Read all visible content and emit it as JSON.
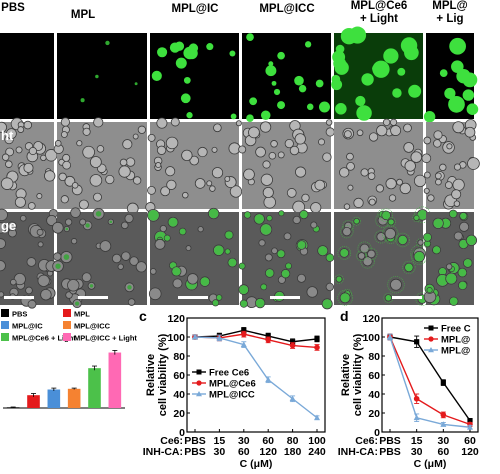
{
  "micrograph_grid": {
    "columns": [
      {
        "label": "PBS"
      },
      {
        "label": "MPL"
      },
      {
        "label": "MPL@IC"
      },
      {
        "label": "MPL@ICC"
      },
      {
        "label": "MPL@Ce6\n+ Light"
      },
      {
        "label": "MPL@\n+ Lig"
      }
    ],
    "rows": [
      {
        "label": ""
      },
      {
        "label": "ht"
      },
      {
        "label": "ge"
      }
    ]
  },
  "panel_labels": {
    "c": "c",
    "d": "d"
  },
  "chart_data": [
    {
      "type": "bar",
      "panel": "left-partial",
      "legend": [
        {
          "name": "PBS",
          "color": "#000000"
        },
        {
          "name": "MPL",
          "color": "#e41a1c"
        },
        {
          "name": "MPL@IC",
          "color": "#4a8fd8"
        },
        {
          "name": "MPL@ICC",
          "color": "#f58231"
        },
        {
          "name": "MPL@Ce6 + Light",
          "color": "#4cc14a"
        },
        {
          "name": "MPL@ICC + Light",
          "color": "#ff69b4"
        }
      ],
      "values": [
        0.05,
        0.9,
        1.3,
        1.35,
        2.8,
        3.9
      ],
      "errors": [
        0.02,
        0.12,
        0.1,
        0.05,
        0.15,
        0.15
      ],
      "ylim": [
        0,
        4.5
      ]
    },
    {
      "type": "line",
      "panel": "c",
      "ylabel": "Relative\ncell viability (%)",
      "xlabel": "C (μM)",
      "ylim": [
        0,
        120
      ],
      "yticks": [
        "0",
        "20",
        "40",
        "60",
        "80",
        "100",
        "120"
      ],
      "row_labels": [
        {
          "name": "Ce6:",
          "ticks": [
            "PBS",
            "15",
            "30",
            "60",
            "80",
            "100"
          ]
        },
        {
          "name": "INH-CA:",
          "ticks": [
            "PBS",
            "30",
            "60",
            "120",
            "180",
            "240"
          ]
        }
      ],
      "series": [
        {
          "name": "Free Ce6",
          "color": "#000000",
          "marker": "square",
          "values": [
            100,
            101,
            107,
            101,
            95,
            98
          ],
          "errors": [
            2,
            3,
            3,
            3,
            3,
            3
          ]
        },
        {
          "name": "MPL@Ce6",
          "color": "#e41a1c",
          "marker": "circle",
          "values": [
            100,
            99,
            103,
            97,
            91,
            89
          ],
          "errors": [
            2,
            3,
            3,
            3,
            3,
            3
          ]
        },
        {
          "name": "MPL@ICC",
          "color": "#7aa9d8",
          "marker": "triangle",
          "values": [
            100,
            99,
            92,
            55,
            35,
            15
          ],
          "errors": [
            2,
            3,
            3,
            3,
            3,
            2
          ]
        }
      ]
    },
    {
      "type": "line",
      "panel": "d",
      "ylabel": "Relative\ncell viability (%)",
      "xlabel": "C (μM)",
      "ylim": [
        0,
        120
      ],
      "yticks": [
        "0",
        "20",
        "40",
        "60",
        "80",
        "100",
        "120"
      ],
      "row_labels": [
        {
          "name": "Ce6:",
          "ticks": [
            "PBS",
            "15",
            "30",
            "60"
          ]
        },
        {
          "name": "INH-CA:",
          "ticks": [
            "PBS",
            "30",
            "60",
            "120"
          ]
        }
      ],
      "series": [
        {
          "name": "Free C",
          "color": "#000000",
          "marker": "square",
          "values": [
            100,
            95,
            52,
            12
          ],
          "errors": [
            3,
            6,
            3,
            2
          ]
        },
        {
          "name": "MPL@",
          "color": "#e41a1c",
          "marker": "circle",
          "values": [
            100,
            35,
            18,
            8
          ],
          "errors": [
            3,
            5,
            3,
            2
          ]
        },
        {
          "name": "MPL@",
          "color": "#7aa9d8",
          "marker": "triangle",
          "values": [
            100,
            15,
            8,
            5
          ],
          "errors": [
            3,
            4,
            2,
            2
          ]
        }
      ]
    }
  ]
}
